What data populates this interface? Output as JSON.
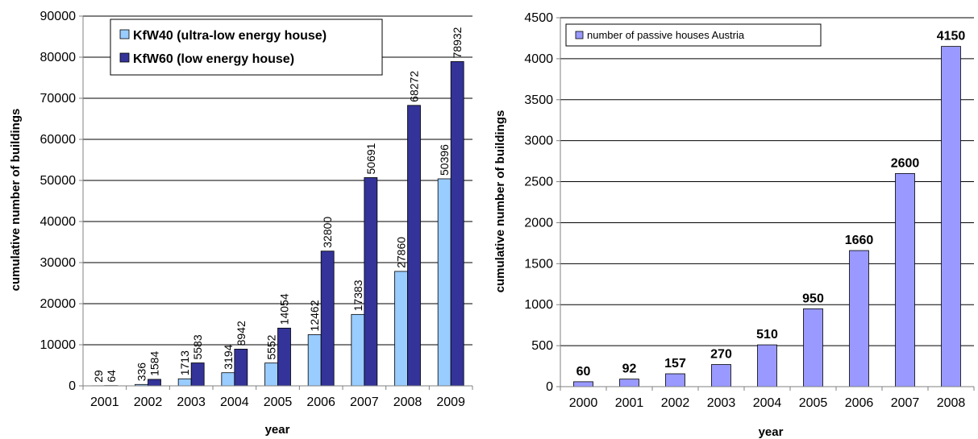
{
  "colors": {
    "kfw40": "#99ccff",
    "kfw60": "#333399",
    "passive": "#9999ff",
    "bar_stroke": "#000000",
    "grid": "#000000",
    "axis": "#808080"
  },
  "chart_data": [
    {
      "type": "bar",
      "title": "",
      "xlabel": "year",
      "ylabel": "cumulative number of buildings",
      "ylim": [
        0,
        90000
      ],
      "yticks": [
        "0",
        "10000",
        "20000",
        "30000",
        "40000",
        "50000",
        "60000",
        "70000",
        "80000",
        "90000"
      ],
      "grid": true,
      "legend_position": "top-right",
      "categories": [
        "2001",
        "2002",
        "2003",
        "2004",
        "2005",
        "2006",
        "2007",
        "2008",
        "2009"
      ],
      "series": [
        {
          "name": "KfW40 (ultra-low energy house)",
          "values": [
            29,
            336,
            1713,
            3194,
            5552,
            12462,
            17383,
            27860,
            50396
          ],
          "labels": [
            "29",
            "336",
            "1713",
            "3194",
            "5552",
            "12462",
            "17383",
            "27860",
            "50396"
          ]
        },
        {
          "name": "KfW60 (low energy house)",
          "values": [
            64,
            1584,
            5583,
            8942,
            14054,
            32800,
            50691,
            68272,
            78932
          ],
          "labels": [
            "64",
            "1584",
            "5583",
            "8942",
            "14054",
            "32800",
            "50691",
            "68272",
            "78932"
          ]
        }
      ]
    },
    {
      "type": "bar",
      "title": "",
      "xlabel": "year",
      "ylabel": "cumulative number of buildings",
      "ylim": [
        0,
        4500
      ],
      "yticks": [
        "0",
        "500",
        "1000",
        "1500",
        "2000",
        "2500",
        "3000",
        "3500",
        "4000",
        "4500"
      ],
      "grid": true,
      "legend_position": "top-left",
      "categories": [
        "2000",
        "2001",
        "2002",
        "2003",
        "2004",
        "2005",
        "2006",
        "2007",
        "2008"
      ],
      "series": [
        {
          "name": "number of passive houses Austria",
          "values": [
            60,
            92,
            157,
            270,
            510,
            950,
            1660,
            2600,
            4150
          ],
          "labels": [
            "60",
            "92",
            "157",
            "270",
            "510",
            "950",
            "1660",
            "2600",
            "4150"
          ]
        }
      ]
    }
  ]
}
